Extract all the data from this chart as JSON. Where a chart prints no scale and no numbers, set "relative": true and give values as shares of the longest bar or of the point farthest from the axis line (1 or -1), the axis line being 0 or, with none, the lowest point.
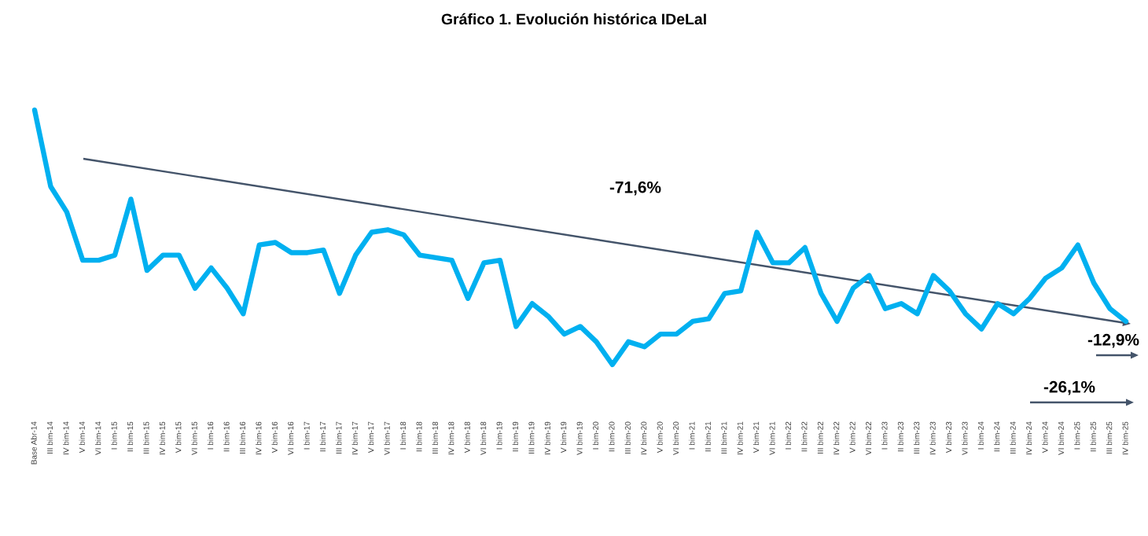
{
  "chart_data": {
    "type": "line",
    "title": "Gráfico 1. Evolución histórica IDeLaI",
    "relative": true,
    "categories": [
      "Base Abr-14",
      "III bim-14",
      "IV bim-14",
      "V bim-14",
      "VI bim-14",
      "I bim-15",
      "II bim-15",
      "III bim-15",
      "IV bim-15",
      "V bim-15",
      "VI bim-15",
      "I bim-16",
      "II bim-16",
      "III bim-16",
      "IV bim-16",
      "V bim-16",
      "VI bim-16",
      "I bim-17",
      "II bim-17",
      "III bim-17",
      "IV bim-17",
      "V bim-17",
      "VI bim-17",
      "I bim-18",
      "II bim-18",
      "III bim-18",
      "IV bim-18",
      "V bim-18",
      "VI bim-18",
      "I bim-19",
      "II bim-19",
      "III bim-19",
      "IV bim-19",
      "V bim-19",
      "VI bim-19",
      "I bim-20",
      "II bim-20",
      "III bim-20",
      "IV bim-20",
      "V bim-20",
      "VI bim-20",
      "I bim-21",
      "II bim-21",
      "III bim-21",
      "IV bim-21",
      "V bim-21",
      "VI bim-21",
      "I bim-22",
      "II bim-22",
      "III bim-22",
      "IV bim-22",
      "V bim-22",
      "VI bim-22",
      "I bim-23",
      "II bim-23",
      "III bim-23",
      "IV bim-23",
      "V bim-23",
      "VI bim-23",
      "I bim-24",
      "II bim-24",
      "III bim-24",
      "IV bim-24",
      "V bim-24",
      "VI bim-24",
      "I bim-25",
      "II bim-25",
      "III bim-25",
      "IV bim-25"
    ],
    "series": [
      {
        "color": "#00b0f0",
        "values": [
          1.0,
          0.7,
          0.6,
          0.41,
          0.41,
          0.43,
          0.65,
          0.37,
          0.43,
          0.43,
          0.3,
          0.38,
          0.3,
          0.2,
          0.47,
          0.48,
          0.44,
          0.44,
          0.45,
          0.28,
          0.43,
          0.52,
          0.53,
          0.51,
          0.43,
          0.42,
          0.41,
          0.26,
          0.4,
          0.41,
          0.15,
          0.24,
          0.19,
          0.12,
          0.15,
          0.09,
          0.0,
          0.09,
          0.07,
          0.12,
          0.12,
          0.17,
          0.18,
          0.28,
          0.29,
          0.52,
          0.4,
          0.4,
          0.46,
          0.28,
          0.17,
          0.3,
          0.35,
          0.22,
          0.24,
          0.2,
          0.35,
          0.29,
          0.2,
          0.14,
          0.24,
          0.2,
          0.26,
          0.34,
          0.38,
          0.47,
          0.32,
          0.22,
          0.17
        ]
      }
    ],
    "annotations": [
      "-71,6%",
      "-12,9%",
      "-26,1%"
    ],
    "grid": false,
    "legend": false,
    "marker": "none",
    "line_style": "solid"
  }
}
